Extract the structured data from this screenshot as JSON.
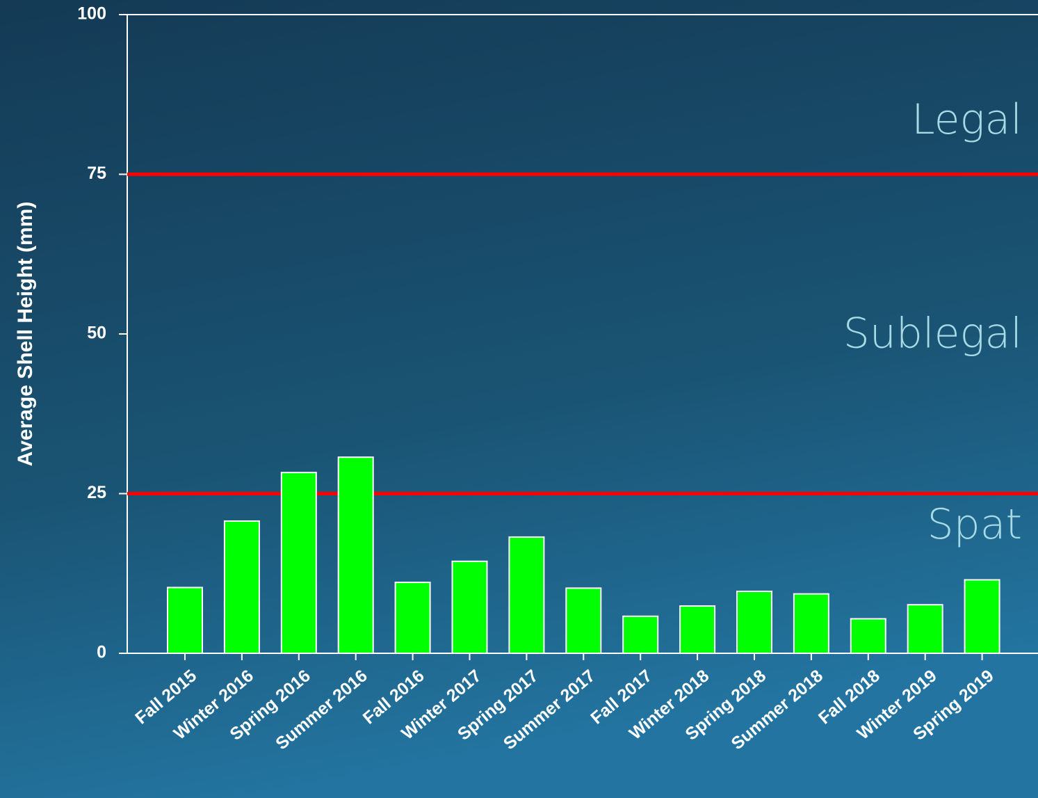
{
  "chart_data": {
    "type": "bar",
    "y_label": "Average Shell Height (mm)",
    "categories": [
      "Fall 2015",
      "Winter 2016",
      "Spring 2016",
      "Summer 2016",
      "Fall 2016",
      "Winter 2017",
      "Spring 2017",
      "Summer 2017",
      "Fall 2017",
      "Winter 2018",
      "Spring 2018",
      "Summer 2018",
      "Fall 2018",
      "Winter 2019",
      "Spring 2019"
    ],
    "values": [
      10.3,
      20.7,
      28.3,
      30.7,
      11.1,
      14.4,
      18.2,
      10.2,
      5.8,
      7.4,
      9.7,
      9.3,
      5.4,
      7.6,
      11.5
    ],
    "color": "#00ff00",
    "ylim": [
      0,
      100
    ],
    "yticks": [
      0,
      25,
      50,
      75,
      100
    ],
    "reference_lines": [
      {
        "value": 75,
        "color": "#ff0000"
      },
      {
        "value": 25,
        "color": "#ff0000"
      }
    ],
    "annotations": [
      "Legal",
      "Sublegal",
      "Spat"
    ]
  }
}
